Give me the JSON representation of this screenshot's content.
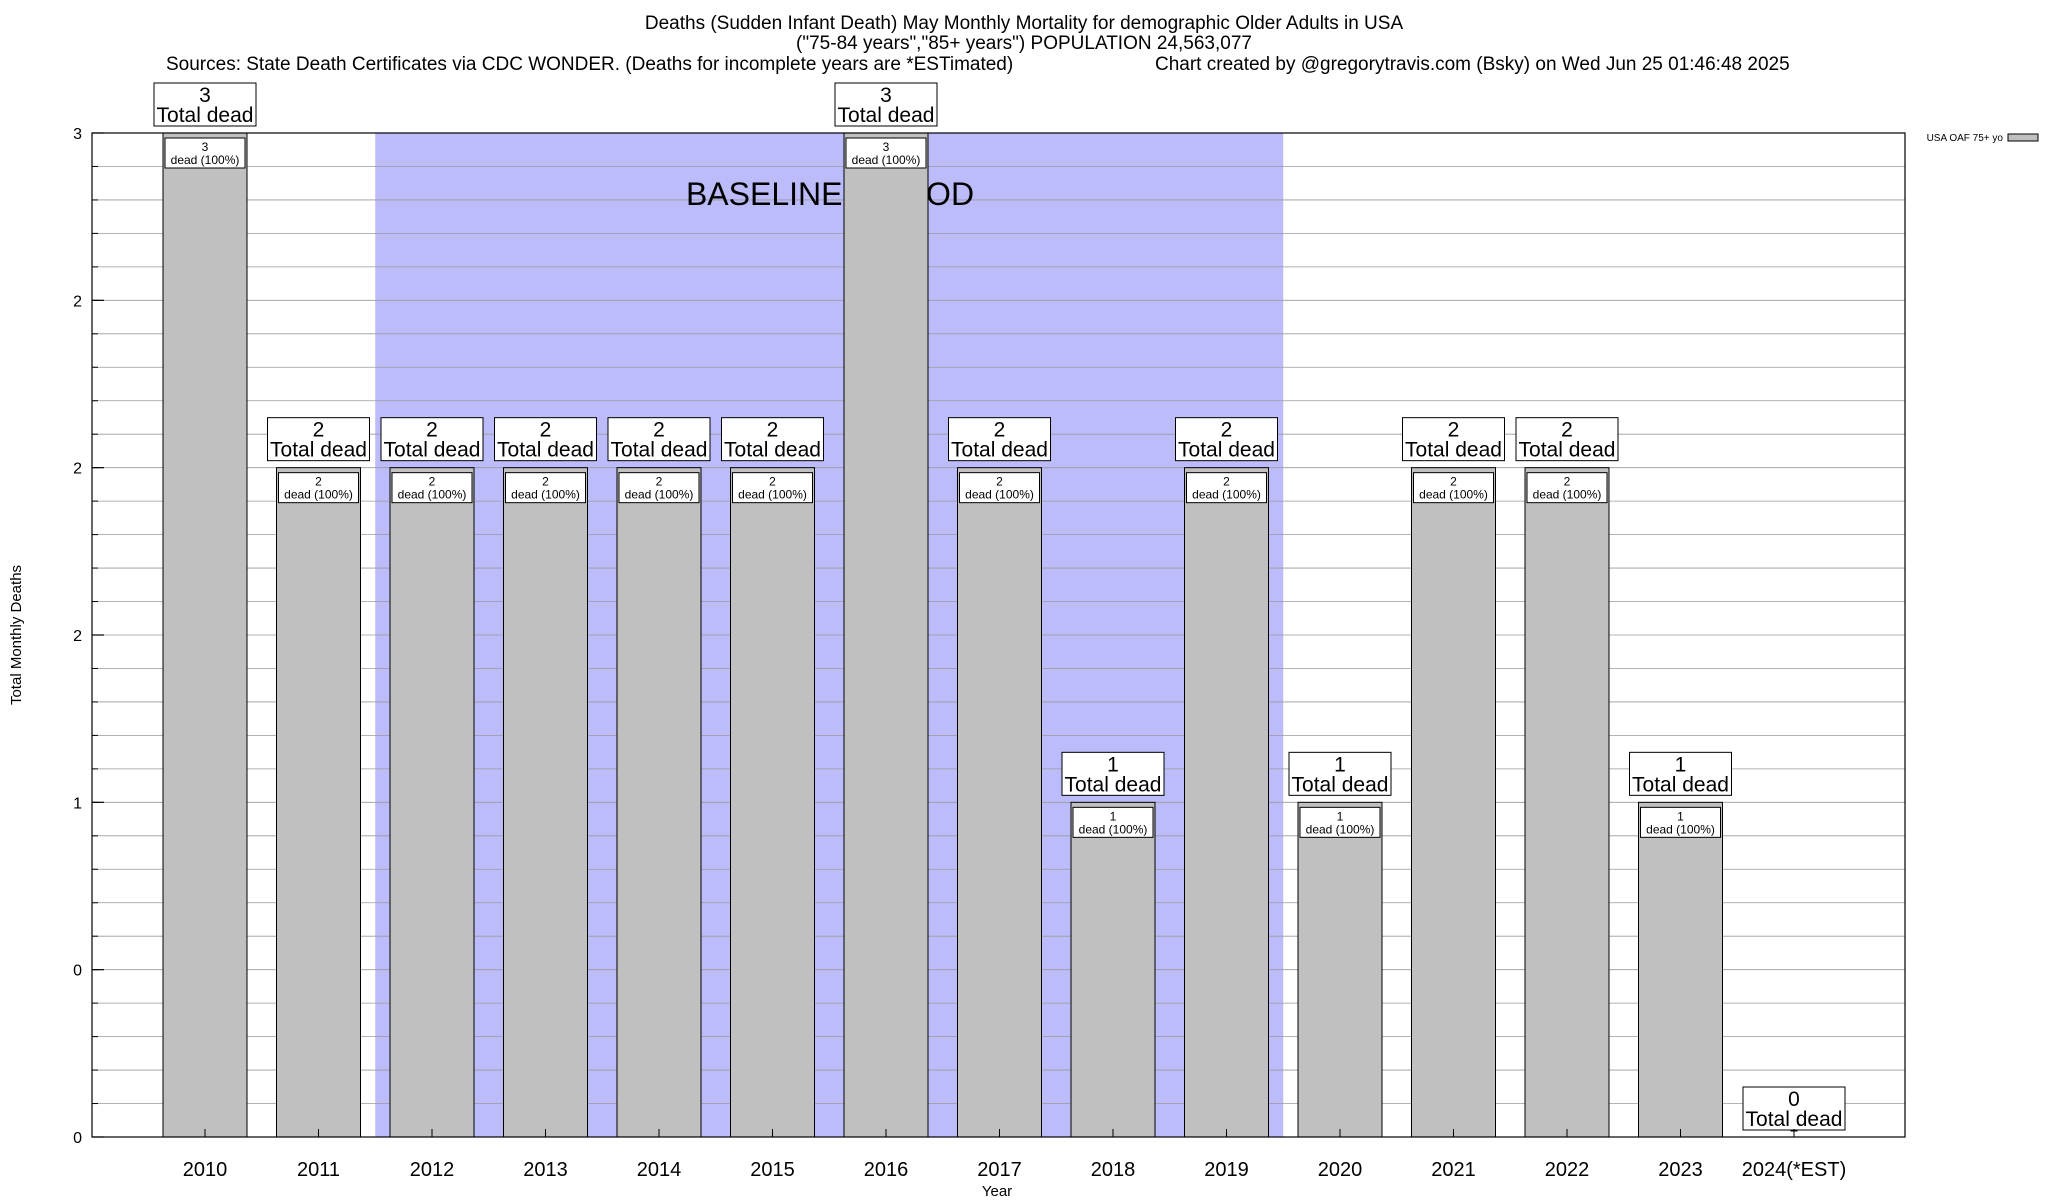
{
  "title_line1": "Deaths (Sudden Infant Death) May Monthly Mortality for demographic Older Adults in USA",
  "title_line2": "(\"75-84 years\",\"85+ years\") POPULATION 24,563,077",
  "sources": "Sources: State Death Certificates via CDC WONDER. (Deaths for incomplete years are *ESTimated)",
  "credit": "Chart created by @gregorytravis.com (Bsky) on Wed Jun 25 01:46:48 2025",
  "chart_data": {
    "type": "bar",
    "xlabel": "Year",
    "ylabel": "Total Monthly Deaths",
    "ylim": [
      0,
      3
    ],
    "y_tick_labels": [
      "0",
      "0",
      "1",
      "2",
      "2",
      "2",
      "3"
    ],
    "grid": true,
    "legend": {
      "placement": "top-right",
      "entries": [
        "USA OAF 75+ yo"
      ]
    },
    "baseline": {
      "label": "BASELINE PERIOD",
      "from": "2012",
      "to": "2019",
      "color": "#bcbcfb"
    },
    "categories": [
      "2010",
      "2011",
      "2012",
      "2013",
      "2014",
      "2015",
      "2016",
      "2017",
      "2018",
      "2019",
      "2020",
      "2021",
      "2022",
      "2023",
      "2024(*EST)"
    ],
    "series": [
      {
        "name": "USA OAF 75+ yo",
        "values": [
          3,
          2,
          2,
          2,
          2,
          2,
          3,
          2,
          1,
          2,
          1,
          2,
          2,
          1,
          0
        ],
        "color": "#c0c0c0"
      }
    ],
    "total_labels": [
      "3",
      "2",
      "2",
      "2",
      "2",
      "2",
      "3",
      "2",
      "1",
      "2",
      "1",
      "2",
      "2",
      "1",
      "0"
    ],
    "total_suffix": "Total dead",
    "inner_labels": [
      "3",
      "2",
      "2",
      "2",
      "2",
      "2",
      "3",
      "2",
      "1",
      "2",
      "1",
      "2",
      "2",
      "1",
      ""
    ],
    "inner_suffix": "dead (100%)"
  }
}
